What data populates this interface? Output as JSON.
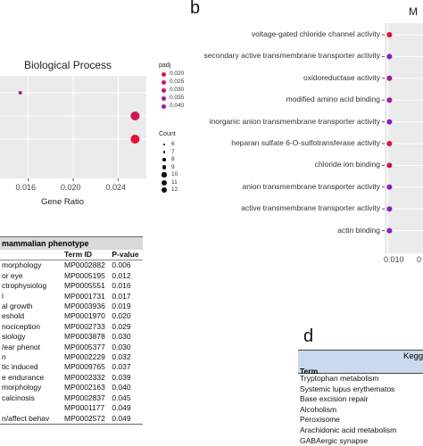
{
  "panel_a": {
    "title": "Biological Process",
    "xlabel": "Gene Ratio",
    "x_ticks": [
      "0.016",
      "0.020",
      "0.024"
    ]
  },
  "legend": {
    "padj_title": "padj",
    "padj_items": [
      {
        "label": "0.020",
        "color": "#e0123a"
      },
      {
        "label": "0.025",
        "color": "#cf1458"
      },
      {
        "label": "0.030",
        "color": "#bb1676"
      },
      {
        "label": "0.035",
        "color": "#a31a98"
      },
      {
        "label": "0.040",
        "color": "#8b1ec0"
      }
    ],
    "count_title": "Count",
    "count_items": [
      "6",
      "7",
      "8",
      "9",
      "10",
      "11",
      "12"
    ]
  },
  "panel_b": {
    "letter": "b",
    "title_fragment": "M",
    "terms": [
      "voltage-gated chloride channel activity",
      "secondary active transmembrane transporter activity",
      "oxidoreductase activity",
      "modified amino acid binding",
      "inorganic anion transmembrane transporter activity",
      "heparan sulfate 6-O-sulfotransferase activity",
      "chloride ion binding",
      "anion transmembrane transporter activity",
      "active transmembrane transporter activity",
      "actin binding"
    ],
    "x_ticks": [
      "0.010",
      "0"
    ]
  },
  "phenotype_table": {
    "title": "mammalian phenotype",
    "headers": [
      "",
      "Term ID",
      "P-value"
    ],
    "rows": [
      [
        "morphology",
        "MP0002882",
        "0.006"
      ],
      [
        "or eye",
        "MP0005195",
        "0.012"
      ],
      [
        "ctrophysiolog",
        "MP0005551",
        "0.016"
      ],
      [
        "l",
        "MP0001731",
        "0.017"
      ],
      [
        "al growth",
        "MP0003936",
        "0.019"
      ],
      [
        "eshold",
        "MP0001970",
        "0.020"
      ],
      [
        "nociception",
        "MP0002733",
        "0.029"
      ],
      [
        "siology",
        "MP0003878",
        "0.030"
      ],
      [
        "/ear phenot",
        "MP0005377",
        "0.030"
      ],
      [
        "n",
        "MP0002229",
        "0.032"
      ],
      [
        "tic induced",
        "MP0009765",
        "0.037"
      ],
      [
        "e endurance",
        "MP0002332",
        "0.039"
      ],
      [
        "morphology",
        "MP0002163",
        "0.040"
      ],
      [
        "calcinosis",
        "MP0002837",
        "0.045"
      ],
      [
        "",
        "MP0001177",
        "0.049"
      ],
      [
        "n/affect behav",
        "MP0002572",
        "0.049"
      ]
    ]
  },
  "panel_d": {
    "letter": "d",
    "header": "Kegg",
    "col_label": "Term",
    "terms": [
      "Tryptophan metabolism",
      "Systemic lupus erythematos",
      "Base excision repair",
      "Alcoholism",
      "Peroxisome",
      "Arachidonic acid metabolism",
      "GABAergic synapse"
    ]
  },
  "chart_data": [
    {
      "type": "scatter",
      "title": "Biological Process",
      "xlabel": "Gene Ratio",
      "ylabel": "",
      "xlim": [
        0.0135,
        0.0265
      ],
      "points": [
        {
          "row": 1,
          "x": 0.0153,
          "padj": 0.035,
          "count": 6
        },
        {
          "row": 2,
          "x": 0.0255,
          "padj": 0.025,
          "count": 12
        },
        {
          "row": 3,
          "x": 0.0255,
          "padj": 0.02,
          "count": 12
        }
      ],
      "grid": true
    },
    {
      "type": "scatter",
      "title": "",
      "xlabel": "",
      "ylabel": "",
      "xlim": [
        0.0098,
        0.0122
      ],
      "categories": [
        "voltage-gated chloride channel activity",
        "secondary active transmembrane transporter activity",
        "oxidoreductase activity",
        "modified amino acid binding",
        "inorganic anion transmembrane transporter activity",
        "heparan sulfate 6-O-sulfotransferase activity",
        "chloride ion binding",
        "anion transmembrane transporter activity",
        "active transmembrane transporter activity",
        "actin binding"
      ],
      "points": [
        {
          "x": 0.0101,
          "padj": 0.02
        },
        {
          "x": 0.0101,
          "padj": 0.04
        },
        {
          "x": 0.0101,
          "padj": 0.035
        },
        {
          "x": 0.0101,
          "padj": 0.035
        },
        {
          "x": 0.0101,
          "padj": 0.04
        },
        {
          "x": 0.0101,
          "padj": 0.02
        },
        {
          "x": 0.0101,
          "padj": 0.025
        },
        {
          "x": 0.0101,
          "padj": 0.04
        },
        {
          "x": 0.0101,
          "padj": 0.04
        },
        {
          "x": 0.0101,
          "padj": 0.04
        }
      ],
      "grid": true
    }
  ]
}
